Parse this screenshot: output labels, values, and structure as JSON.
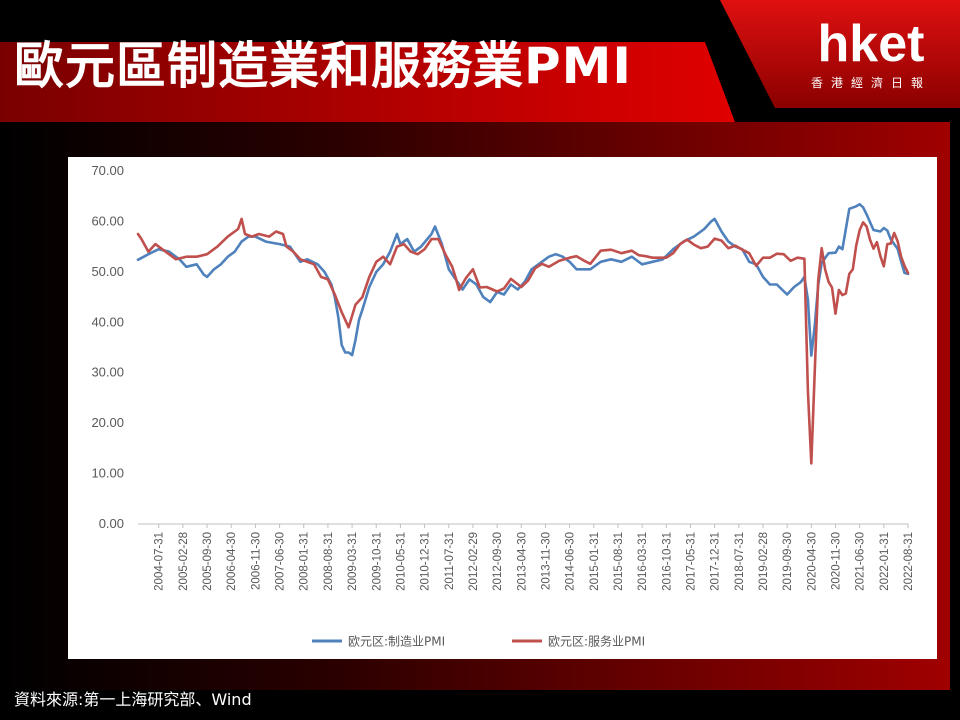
{
  "header": {
    "title": "歐元區制造業和服務業PMI",
    "logo": {
      "main": "hket",
      "sub": "香港經濟日報"
    }
  },
  "footer": {
    "source": "資料來源:第一上海研究部、Wind"
  },
  "colors": {
    "manufacturing": "#4f81bd",
    "services": "#c0504d",
    "accent_red": "#c00000"
  },
  "chart_data": {
    "type": "line",
    "ylim": [
      0,
      70
    ],
    "yticks": [
      "0.00",
      "10.00",
      "20.00",
      "30.00",
      "40.00",
      "50.00",
      "60.00",
      "70.00"
    ],
    "xticks": [
      "2004-07-31",
      "2005-02-28",
      "2005-09-30",
      "2006-04-30",
      "2006-11-30",
      "2007-06-30",
      "2008-01-31",
      "2008-08-31",
      "2009-03-31",
      "2009-10-31",
      "2010-05-31",
      "2010-12-31",
      "2011-07-31",
      "2012-02-29",
      "2012-09-30",
      "2013-04-30",
      "2013-11-30",
      "2014-06-30",
      "2015-01-31",
      "2015-08-31",
      "2016-03-31",
      "2016-10-31",
      "2017-05-31",
      "2017-12-31",
      "2018-07-31",
      "2019-02-28",
      "2019-09-30",
      "2020-04-30",
      "2020-11-30",
      "2021-06-30",
      "2022-01-31",
      "2022-08-31"
    ],
    "x_range": [
      "2004-01",
      "2022-08"
    ],
    "grid": false,
    "legend_position": "bottom",
    "series": [
      {
        "name": "欧元区:制造业PMI",
        "color": "#4f81bd",
        "points": [
          [
            "2004-01",
            52.4
          ],
          [
            "2004-04",
            53.5
          ],
          [
            "2004-07",
            54.5
          ],
          [
            "2004-10",
            54
          ],
          [
            "2005-01",
            52.5
          ],
          [
            "2005-03",
            51
          ],
          [
            "2005-06",
            51.5
          ],
          [
            "2005-08",
            49.5
          ],
          [
            "2005-09",
            49
          ],
          [
            "2005-11",
            50.5
          ],
          [
            "2006-01",
            51.5
          ],
          [
            "2006-03",
            53
          ],
          [
            "2006-05",
            54
          ],
          [
            "2006-07",
            56
          ],
          [
            "2006-09",
            57
          ],
          [
            "2006-11",
            57
          ],
          [
            "2007-02",
            56
          ],
          [
            "2007-06",
            55.5
          ],
          [
            "2007-09",
            55
          ],
          [
            "2007-12",
            52
          ],
          [
            "2008-02",
            52.5
          ],
          [
            "2008-05",
            51.5
          ],
          [
            "2008-07",
            50
          ],
          [
            "2008-09",
            47.5
          ],
          [
            "2008-10",
            45
          ],
          [
            "2008-11",
            41
          ],
          [
            "2008-12",
            35.5
          ],
          [
            "2009-01",
            34
          ],
          [
            "2009-02",
            34
          ],
          [
            "2009-03",
            33.5
          ],
          [
            "2009-04",
            36.5
          ],
          [
            "2009-05",
            40.5
          ],
          [
            "2009-06",
            42.5
          ],
          [
            "2009-08",
            47
          ],
          [
            "2009-10",
            50
          ],
          [
            "2009-12",
            51.5
          ],
          [
            "2010-02",
            54
          ],
          [
            "2010-04",
            57.5
          ],
          [
            "2010-05",
            55.5
          ],
          [
            "2010-07",
            56.5
          ],
          [
            "2010-09",
            54
          ],
          [
            "2010-11",
            55
          ],
          [
            "2011-02",
            57.5
          ],
          [
            "2011-03",
            59
          ],
          [
            "2011-05",
            55.5
          ],
          [
            "2011-07",
            50.5
          ],
          [
            "2011-09",
            48.5
          ],
          [
            "2011-11",
            46.5
          ],
          [
            "2012-01",
            48.5
          ],
          [
            "2012-03",
            47.5
          ],
          [
            "2012-05",
            45
          ],
          [
            "2012-07",
            44
          ],
          [
            "2012-09",
            46
          ],
          [
            "2012-11",
            45.5
          ],
          [
            "2013-01",
            47.5
          ],
          [
            "2013-03",
            46.5
          ],
          [
            "2013-05",
            48
          ],
          [
            "2013-07",
            50.5
          ],
          [
            "2013-09",
            51.5
          ],
          [
            "2013-12",
            53
          ],
          [
            "2014-02",
            53.5
          ],
          [
            "2014-04",
            53
          ],
          [
            "2014-06",
            52
          ],
          [
            "2014-08",
            50.5
          ],
          [
            "2014-10",
            50.5
          ],
          [
            "2014-12",
            50.5
          ],
          [
            "2015-03",
            52
          ],
          [
            "2015-06",
            52.5
          ],
          [
            "2015-09",
            52
          ],
          [
            "2015-12",
            53
          ],
          [
            "2016-03",
            51.5
          ],
          [
            "2016-06",
            52
          ],
          [
            "2016-09",
            52.5
          ],
          [
            "2016-12",
            54.5
          ],
          [
            "2017-03",
            56
          ],
          [
            "2017-06",
            57
          ],
          [
            "2017-09",
            58.5
          ],
          [
            "2017-11",
            60
          ],
          [
            "2017-12",
            60.5
          ],
          [
            "2018-02",
            58
          ],
          [
            "2018-04",
            56
          ],
          [
            "2018-06",
            55
          ],
          [
            "2018-08",
            54.5
          ],
          [
            "2018-10",
            52
          ],
          [
            "2018-12",
            51.5
          ],
          [
            "2019-02",
            49
          ],
          [
            "2019-04",
            47.5
          ],
          [
            "2019-06",
            47.5
          ],
          [
            "2019-09",
            45.5
          ],
          [
            "2019-11",
            47
          ],
          [
            "2020-01",
            48
          ],
          [
            "2020-02",
            49
          ],
          [
            "2020-03",
            44.5
          ],
          [
            "2020-04",
            33.4
          ],
          [
            "2020-05",
            39.4
          ],
          [
            "2020-06",
            47.4
          ],
          [
            "2020-07",
            51.8
          ],
          [
            "2020-09",
            53.7
          ],
          [
            "2020-11",
            53.8
          ],
          [
            "2020-12",
            55
          ],
          [
            "2021-01",
            54.5
          ],
          [
            "2021-03",
            62.5
          ],
          [
            "2021-05",
            63
          ],
          [
            "2021-06",
            63.4
          ],
          [
            "2021-07",
            62.8
          ],
          [
            "2021-08",
            61.4
          ],
          [
            "2021-10",
            58.3
          ],
          [
            "2021-12",
            58
          ],
          [
            "2022-01",
            58.7
          ],
          [
            "2022-02",
            58.2
          ],
          [
            "2022-03",
            56.5
          ],
          [
            "2022-04",
            55.5
          ],
          [
            "2022-05",
            54.6
          ],
          [
            "2022-06",
            52.1
          ],
          [
            "2022-07",
            49.8
          ],
          [
            "2022-08",
            49.6
          ]
        ]
      },
      {
        "name": "欧元区:服务业PMI",
        "color": "#c0504d",
        "points": [
          [
            "2004-01",
            57.5
          ],
          [
            "2004-02",
            56.5
          ],
          [
            "2004-04",
            54
          ],
          [
            "2004-06",
            55.5
          ],
          [
            "2004-09",
            54
          ],
          [
            "2004-12",
            52.5
          ],
          [
            "2005-03",
            53
          ],
          [
            "2005-06",
            53
          ],
          [
            "2005-09",
            53.5
          ],
          [
            "2005-12",
            55
          ],
          [
            "2006-03",
            57
          ],
          [
            "2006-06",
            58.5
          ],
          [
            "2006-07",
            60.5
          ],
          [
            "2006-08",
            57.5
          ],
          [
            "2006-10",
            57
          ],
          [
            "2006-12",
            57.5
          ],
          [
            "2007-03",
            57
          ],
          [
            "2007-05",
            58
          ],
          [
            "2007-07",
            57.5
          ],
          [
            "2007-08",
            55
          ],
          [
            "2007-10",
            54
          ],
          [
            "2007-12",
            52.5
          ],
          [
            "2008-02",
            52
          ],
          [
            "2008-04",
            51.5
          ],
          [
            "2008-06",
            49
          ],
          [
            "2008-08",
            48.5
          ],
          [
            "2008-10",
            45.5
          ],
          [
            "2008-12",
            42
          ],
          [
            "2009-02",
            39
          ],
          [
            "2009-04",
            43.5
          ],
          [
            "2009-06",
            45
          ],
          [
            "2009-08",
            49
          ],
          [
            "2009-10",
            52
          ],
          [
            "2009-12",
            53
          ],
          [
            "2010-02",
            51.5
          ],
          [
            "2010-04",
            55
          ],
          [
            "2010-06",
            55.5
          ],
          [
            "2010-08",
            54
          ],
          [
            "2010-10",
            53.5
          ],
          [
            "2010-12",
            54.5
          ],
          [
            "2011-02",
            56.5
          ],
          [
            "2011-04",
            56.5
          ],
          [
            "2011-06",
            53.5
          ],
          [
            "2011-08",
            51
          ],
          [
            "2011-09",
            48.8
          ],
          [
            "2011-10",
            46.4
          ],
          [
            "2011-12",
            48.8
          ],
          [
            "2012-02",
            50.5
          ],
          [
            "2012-04",
            46.9
          ],
          [
            "2012-06",
            47
          ],
          [
            "2012-09",
            46.1
          ],
          [
            "2012-11",
            46.7
          ],
          [
            "2013-01",
            48.6
          ],
          [
            "2013-04",
            47
          ],
          [
            "2013-06",
            48.3
          ],
          [
            "2013-08",
            50.7
          ],
          [
            "2013-10",
            51.6
          ],
          [
            "2013-12",
            51
          ],
          [
            "2014-03",
            52.2
          ],
          [
            "2014-06",
            52.8
          ],
          [
            "2014-08",
            53.1
          ],
          [
            "2014-10",
            52.3
          ],
          [
            "2014-12",
            51.6
          ],
          [
            "2015-03",
            54.2
          ],
          [
            "2015-06",
            54.4
          ],
          [
            "2015-09",
            53.7
          ],
          [
            "2015-12",
            54.2
          ],
          [
            "2016-02",
            53.3
          ],
          [
            "2016-04",
            53.1
          ],
          [
            "2016-06",
            52.8
          ],
          [
            "2016-08",
            52.8
          ],
          [
            "2016-10",
            52.8
          ],
          [
            "2016-12",
            53.7
          ],
          [
            "2017-02",
            55.5
          ],
          [
            "2017-04",
            56.4
          ],
          [
            "2017-06",
            55.4
          ],
          [
            "2017-08",
            54.7
          ],
          [
            "2017-10",
            55
          ],
          [
            "2017-12",
            56.6
          ],
          [
            "2018-02",
            56.2
          ],
          [
            "2018-04",
            54.7
          ],
          [
            "2018-06",
            55.2
          ],
          [
            "2018-08",
            54.4
          ],
          [
            "2018-10",
            53.7
          ],
          [
            "2018-12",
            51.2
          ],
          [
            "2019-02",
            52.8
          ],
          [
            "2019-04",
            52.8
          ],
          [
            "2019-06",
            53.6
          ],
          [
            "2019-08",
            53.5
          ],
          [
            "2019-10",
            52.2
          ],
          [
            "2019-12",
            52.8
          ],
          [
            "2020-02",
            52.6
          ],
          [
            "2020-03",
            26.4
          ],
          [
            "2020-04",
            12
          ],
          [
            "2020-05",
            30.5
          ],
          [
            "2020-06",
            48.3
          ],
          [
            "2020-07",
            54.7
          ],
          [
            "2020-08",
            50.5
          ],
          [
            "2020-09",
            48
          ],
          [
            "2020-10",
            46.9
          ],
          [
            "2020-11",
            41.7
          ],
          [
            "2020-12",
            46.4
          ],
          [
            "2021-01",
            45.4
          ],
          [
            "2021-02",
            45.7
          ],
          [
            "2021-03",
            49.6
          ],
          [
            "2021-04",
            50.5
          ],
          [
            "2021-05",
            55.2
          ],
          [
            "2021-06",
            58.3
          ],
          [
            "2021-07",
            59.8
          ],
          [
            "2021-08",
            59
          ],
          [
            "2021-09",
            56.4
          ],
          [
            "2021-10",
            54.6
          ],
          [
            "2021-11",
            55.9
          ],
          [
            "2021-12",
            53.1
          ],
          [
            "2022-01",
            51.1
          ],
          [
            "2022-02",
            55.5
          ],
          [
            "2022-03",
            55.6
          ],
          [
            "2022-04",
            57.7
          ],
          [
            "2022-05",
            56.1
          ],
          [
            "2022-06",
            53
          ],
          [
            "2022-07",
            51.2
          ],
          [
            "2022-08",
            49.8
          ]
        ]
      }
    ]
  }
}
